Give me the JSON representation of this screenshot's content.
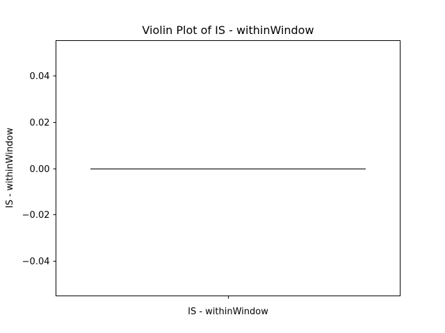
{
  "chart_data": {
    "type": "violin",
    "title": "Violin Plot of IS - withinWindow",
    "xlabel": "IS - withinWindow",
    "ylabel": "IS - withinWindow",
    "categories": [
      ""
    ],
    "series": [
      {
        "values": [
          0.0,
          0.0,
          0.0,
          0.0
        ]
      }
    ],
    "ylim": [
      -0.055,
      0.055
    ],
    "yticks": [
      -0.04,
      -0.02,
      0.0,
      0.02,
      0.04
    ],
    "ytick_labels": [
      "−0.04",
      "−0.02",
      "0.00",
      "0.02",
      "0.04"
    ],
    "grid": false,
    "legend": "none"
  },
  "colors": {
    "axes": "#000000",
    "violin_line": "#3f3f3f",
    "background": "#ffffff"
  }
}
